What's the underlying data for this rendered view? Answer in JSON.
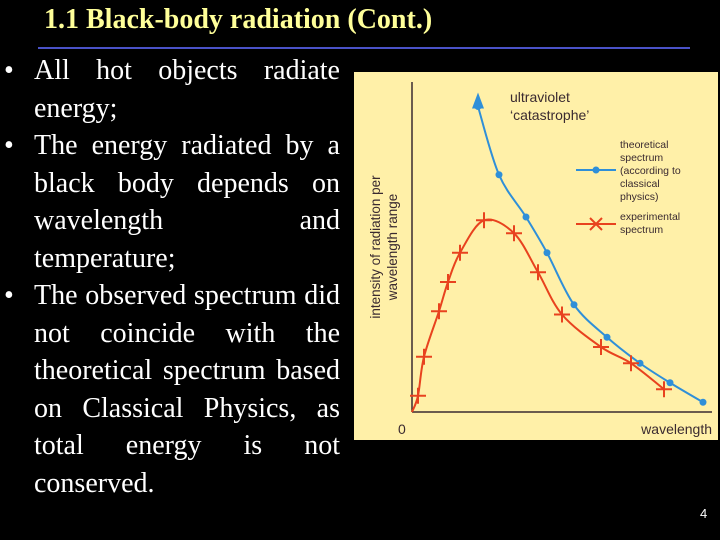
{
  "slide": {
    "title": "1.1 Black-body radiation (Cont.)",
    "page_number": "4",
    "bullet_glyph": "•",
    "bullets": [
      "All hot objects radiate energy;",
      "The energy radiated by a black body depends on wavelength and temperature;",
      "The observed spectrum did not coincide with the theoretical spectrum based on Classical Physics, as total energy is not conserved."
    ]
  },
  "chart_data": {
    "type": "line",
    "xlabel": "wavelength",
    "ylabel": "intensity of radiation per wavelength range",
    "origin_label": "0",
    "xlim": [
      0,
      10
    ],
    "ylim": [
      0,
      10
    ],
    "annotation": "ultraviolet ‘catastrophe’",
    "series": [
      {
        "name": "theoretical spectrum (according to classical physics)",
        "color": "#2f8fd8",
        "marker": "dot",
        "x": [
          2.2,
          2.9,
          3.8,
          4.5,
          5.4,
          6.5,
          7.6,
          8.6,
          9.7
        ],
        "y": [
          9.4,
          7.3,
          6.0,
          4.9,
          3.3,
          2.3,
          1.5,
          0.9,
          0.3
        ]
      },
      {
        "name": "experimental spectrum",
        "color": "#e8421e",
        "marker": "cross",
        "x": [
          0.2,
          0.4,
          0.9,
          1.2,
          1.6,
          2.4,
          3.4,
          4.2,
          5.0,
          6.3,
          7.3,
          8.4
        ],
        "y": [
          0.5,
          1.7,
          3.1,
          4.0,
          4.9,
          5.9,
          5.5,
          4.3,
          3.0,
          2.0,
          1.5,
          0.7
        ]
      }
    ]
  }
}
